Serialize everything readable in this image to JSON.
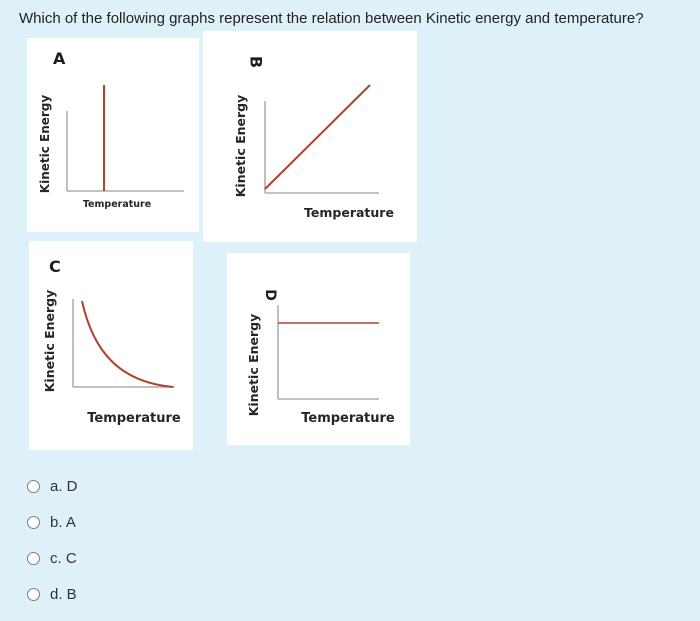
{
  "question": "Which of the following graphs represent the relation between Kinetic energy and temperature?",
  "graphs": [
    {
      "label": "A",
      "ylabel": "Kinetic Energy",
      "xlabel": "Temperature"
    },
    {
      "label": "B",
      "ylabel": "Kinetic Energy",
      "xlabel": "Temperature"
    },
    {
      "label": "C",
      "ylabel": "Kinetic Energy",
      "xlabel": "Temperature"
    },
    {
      "label": "D",
      "ylabel": "Kinetic Energy",
      "xlabel": "Temperature"
    }
  ],
  "options": [
    "a. D",
    "b. A",
    "c. C",
    "d. B"
  ],
  "colors": {
    "curve": "#b0412e",
    "axis": "#999999",
    "background": "#dff1f8"
  }
}
